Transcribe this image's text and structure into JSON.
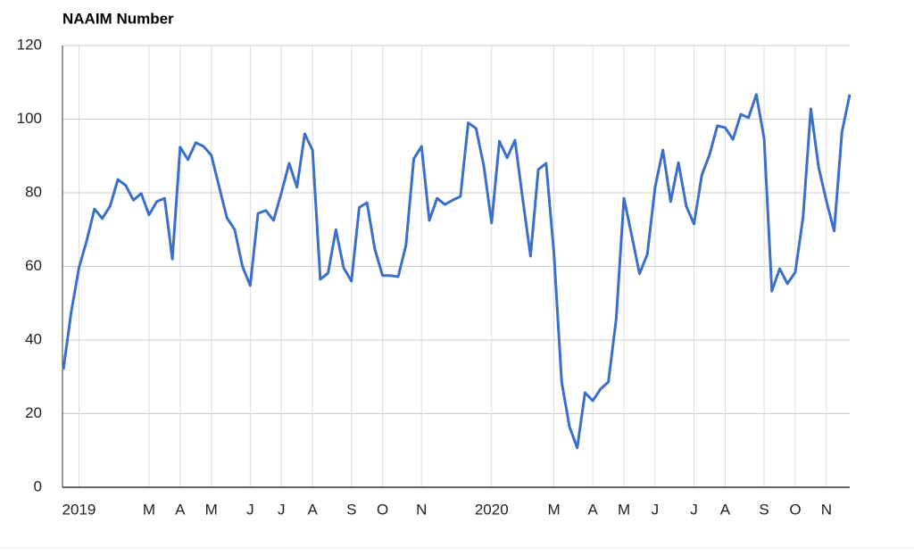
{
  "chart_data": {
    "type": "line",
    "title": "NAAIM Number",
    "categories": [
      null,
      null,
      "2019",
      null,
      null,
      null,
      null,
      null,
      null,
      null,
      null,
      "M",
      null,
      null,
      null,
      "A",
      null,
      null,
      null,
      "M",
      null,
      null,
      null,
      null,
      "J",
      null,
      null,
      null,
      "J",
      null,
      null,
      null,
      "A",
      null,
      null,
      null,
      null,
      "S",
      null,
      null,
      null,
      "O",
      null,
      null,
      null,
      null,
      "N",
      null,
      null,
      null,
      null,
      null,
      null,
      null,
      null,
      "2020",
      null,
      null,
      null,
      null,
      null,
      null,
      null,
      "M",
      null,
      null,
      null,
      null,
      "A",
      null,
      null,
      null,
      "M",
      null,
      null,
      null,
      "J",
      null,
      null,
      null,
      null,
      "J",
      null,
      null,
      null,
      "A",
      null,
      null,
      null,
      null,
      "S",
      null,
      null,
      null,
      "O",
      null,
      null,
      null,
      "N",
      null,
      null,
      null
    ],
    "values": [
      32,
      47.5,
      59.6,
      67,
      75.6,
      73,
      76.4,
      83.6,
      82,
      78,
      79.8,
      74,
      77.6,
      78.5,
      62,
      92.4,
      89,
      93.6,
      92.6,
      90.2,
      81.7,
      73.2,
      70,
      60,
      54.8,
      74.4,
      75.2,
      72.5,
      80,
      88,
      81.5,
      96,
      91.6,
      56.5,
      58.2,
      70,
      59.6,
      56,
      76,
      77.3,
      64.7,
      57.5,
      57.5,
      57.2,
      65.7,
      89.2,
      92.6,
      72.5,
      78.5,
      76.8,
      78,
      79,
      99,
      97.5,
      87.3,
      71.8,
      94,
      89.5,
      94.3,
      78.3,
      62.8,
      86.3,
      88,
      63.8,
      28.6,
      16.5,
      10.7,
      25.7,
      23.5,
      26.7,
      28.6,
      45.6,
      78.5,
      68.4,
      58,
      63.3,
      81.5,
      91.6,
      77.6,
      88.2,
      76.4,
      71.5,
      84.8,
      90.4,
      98.2,
      97.7,
      94.5,
      101.3,
      100.4,
      106.7,
      94.8,
      53.3,
      59.4,
      55.3,
      58.4,
      73.2,
      102.8,
      87,
      77.8,
      69.6,
      96.5,
      106.7
    ],
    "color": "#3b6fc9",
    "ylim": [
      0,
      120
    ],
    "yticks": [
      0,
      20,
      40,
      60,
      80,
      100,
      120
    ],
    "grid": true
  }
}
